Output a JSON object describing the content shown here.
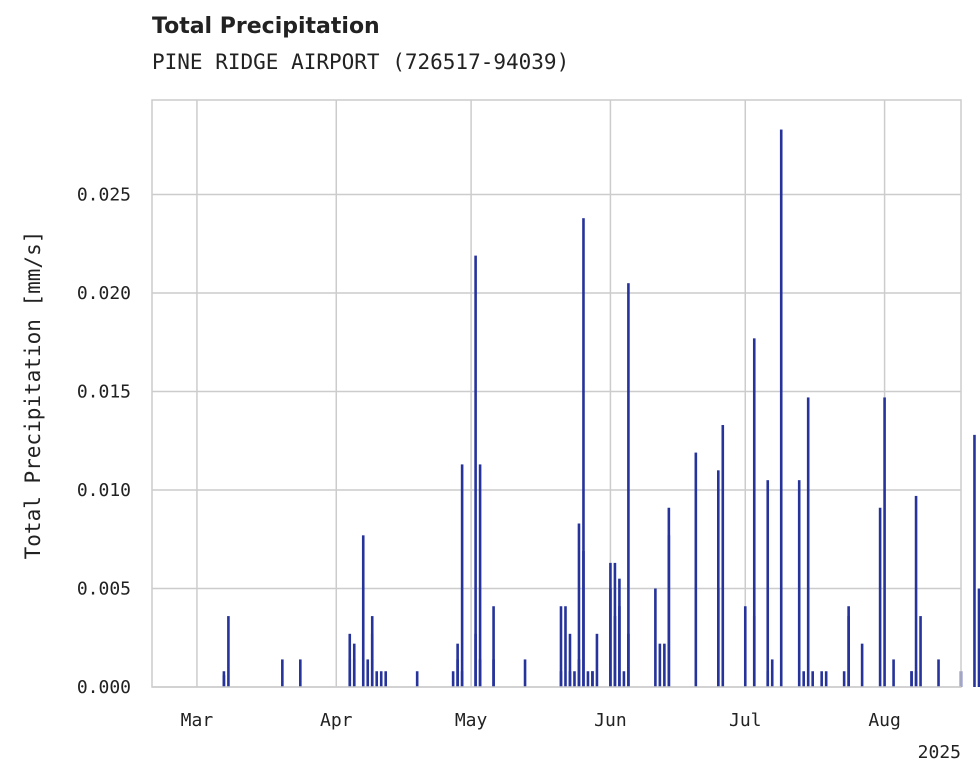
{
  "title": "Total Precipitation",
  "subtitle": "PINE RIDGE AIRPORT (726517-94039)",
  "colors": {
    "bar": "#26339a",
    "grid": "#cccccc",
    "frame": "#cccccc",
    "text": "#222222"
  },
  "chart_data": {
    "type": "bar",
    "title": "Total Precipitation",
    "subtitle": "PINE RIDGE AIRPORT (726517-94039)",
    "xlabel": "",
    "ylabel": "Total Precipitation [mm/s]",
    "year_label": "2025",
    "grid": true,
    "xlim": [
      "2025-02-19",
      "2025-08-18"
    ],
    "ylim": [
      0,
      0.0298
    ],
    "yticks": [
      {
        "value": 0.0,
        "label": "0.000"
      },
      {
        "value": 0.005,
        "label": "0.005"
      },
      {
        "value": 0.01,
        "label": "0.010"
      },
      {
        "value": 0.015,
        "label": "0.015"
      },
      {
        "value": 0.02,
        "label": "0.020"
      },
      {
        "value": 0.025,
        "label": "0.025"
      }
    ],
    "xticks": [
      {
        "date": "2025-03-01",
        "label": "Mar"
      },
      {
        "date": "2025-04-01",
        "label": "Apr"
      },
      {
        "date": "2025-05-01",
        "label": "May"
      },
      {
        "date": "2025-06-01",
        "label": "Jun"
      },
      {
        "date": "2025-07-01",
        "label": "Jul"
      },
      {
        "date": "2025-08-01",
        "label": "Aug"
      }
    ],
    "series": [
      {
        "points": [
          [
            "2025-03-07",
            0.0008
          ],
          [
            "2025-03-07",
            0.0006
          ],
          [
            "2025-03-08",
            0.0036
          ],
          [
            "2025-03-20",
            0.0014
          ],
          [
            "2025-03-24",
            0.0014
          ],
          [
            "2025-04-04",
            0.0014
          ],
          [
            "2025-04-04",
            0.0027
          ],
          [
            "2025-04-05",
            0.0022
          ],
          [
            "2025-04-05",
            0.0014
          ],
          [
            "2025-04-07",
            0.0077
          ],
          [
            "2025-04-08",
            0.0014
          ],
          [
            "2025-04-09",
            0.0036
          ],
          [
            "2025-04-09",
            0.0027
          ],
          [
            "2025-04-10",
            0.0008
          ],
          [
            "2025-04-11",
            0.0008
          ],
          [
            "2025-04-12",
            0.0008
          ],
          [
            "2025-04-19",
            0.0008
          ],
          [
            "2025-04-27",
            0.0008
          ],
          [
            "2025-04-28",
            0.0022
          ],
          [
            "2025-04-28",
            0.0014
          ],
          [
            "2025-04-29",
            0.0113
          ],
          [
            "2025-04-29",
            0.0008
          ],
          [
            "2025-05-02",
            0.0027
          ],
          [
            "2025-05-02",
            0.0219
          ],
          [
            "2025-05-03",
            0.0113
          ],
          [
            "2025-05-03",
            0.0014
          ],
          [
            "2025-05-06",
            0.0014
          ],
          [
            "2025-05-06",
            0.0041
          ],
          [
            "2025-05-13",
            0.0014
          ],
          [
            "2025-05-21",
            0.0008
          ],
          [
            "2025-05-21",
            0.0041
          ],
          [
            "2025-05-22",
            0.0041
          ],
          [
            "2025-05-23",
            0.0008
          ],
          [
            "2025-05-23",
            0.0027
          ],
          [
            "2025-05-24",
            0.0008
          ],
          [
            "2025-05-25",
            0.0083
          ],
          [
            "2025-05-25",
            0.0014
          ],
          [
            "2025-05-26",
            0.0238
          ],
          [
            "2025-05-26",
            0.0069
          ],
          [
            "2025-05-27",
            0.0008
          ],
          [
            "2025-05-28",
            0.0008
          ],
          [
            "2025-05-28",
            0.0008
          ],
          [
            "2025-05-29",
            0.0027
          ],
          [
            "2025-06-01",
            0.005
          ],
          [
            "2025-06-01",
            0.0063
          ],
          [
            "2025-06-02",
            0.0036
          ],
          [
            "2025-06-02",
            0.0063
          ],
          [
            "2025-06-03",
            0.0055
          ],
          [
            "2025-06-03",
            0.0041
          ],
          [
            "2025-06-04",
            0.0008
          ],
          [
            "2025-06-05",
            0.0205
          ],
          [
            "2025-06-05",
            0.0027
          ],
          [
            "2025-06-11",
            0.005
          ],
          [
            "2025-06-12",
            0.0022
          ],
          [
            "2025-06-13",
            0.0022
          ],
          [
            "2025-06-14",
            0.0091
          ],
          [
            "2025-06-14",
            0.0077
          ],
          [
            "2025-06-20",
            0.0119
          ],
          [
            "2025-06-25",
            0.005
          ],
          [
            "2025-06-25",
            0.011
          ],
          [
            "2025-06-26",
            0.0133
          ],
          [
            "2025-07-01",
            0.0041
          ],
          [
            "2025-07-03",
            0.0036
          ],
          [
            "2025-07-03",
            0.0177
          ],
          [
            "2025-07-06",
            0.0105
          ],
          [
            "2025-07-06",
            0.0008
          ],
          [
            "2025-07-07",
            0.0014
          ],
          [
            "2025-07-09",
            0.0283
          ],
          [
            "2025-07-13",
            0.0105
          ],
          [
            "2025-07-14",
            0.0008
          ],
          [
            "2025-07-15",
            0.0147
          ],
          [
            "2025-07-16",
            0.0008
          ],
          [
            "2025-07-18",
            0.0008
          ],
          [
            "2025-07-19",
            0.0008
          ],
          [
            "2025-07-23",
            0.0008
          ],
          [
            "2025-07-24",
            0.0036
          ],
          [
            "2025-07-24",
            0.0041
          ],
          [
            "2025-07-27",
            0.0022
          ],
          [
            "2025-07-31",
            0.0091
          ],
          [
            "2025-08-01",
            0.0147
          ],
          [
            "2025-08-03",
            0.0014
          ],
          [
            "2025-08-07",
            0.0008
          ],
          [
            "2025-08-07",
            0.0008
          ],
          [
            "2025-08-08",
            0.0097
          ],
          [
            "2025-08-08",
            0.0008
          ],
          [
            "2025-08-09",
            0.0036
          ],
          [
            "2025-08-13",
            0.0014
          ],
          [
            "2025-08-18",
            0.0008
          ],
          [
            "2025-08-21",
            0.0128
          ],
          [
            "2025-08-22",
            0.005
          ]
        ]
      }
    ]
  }
}
